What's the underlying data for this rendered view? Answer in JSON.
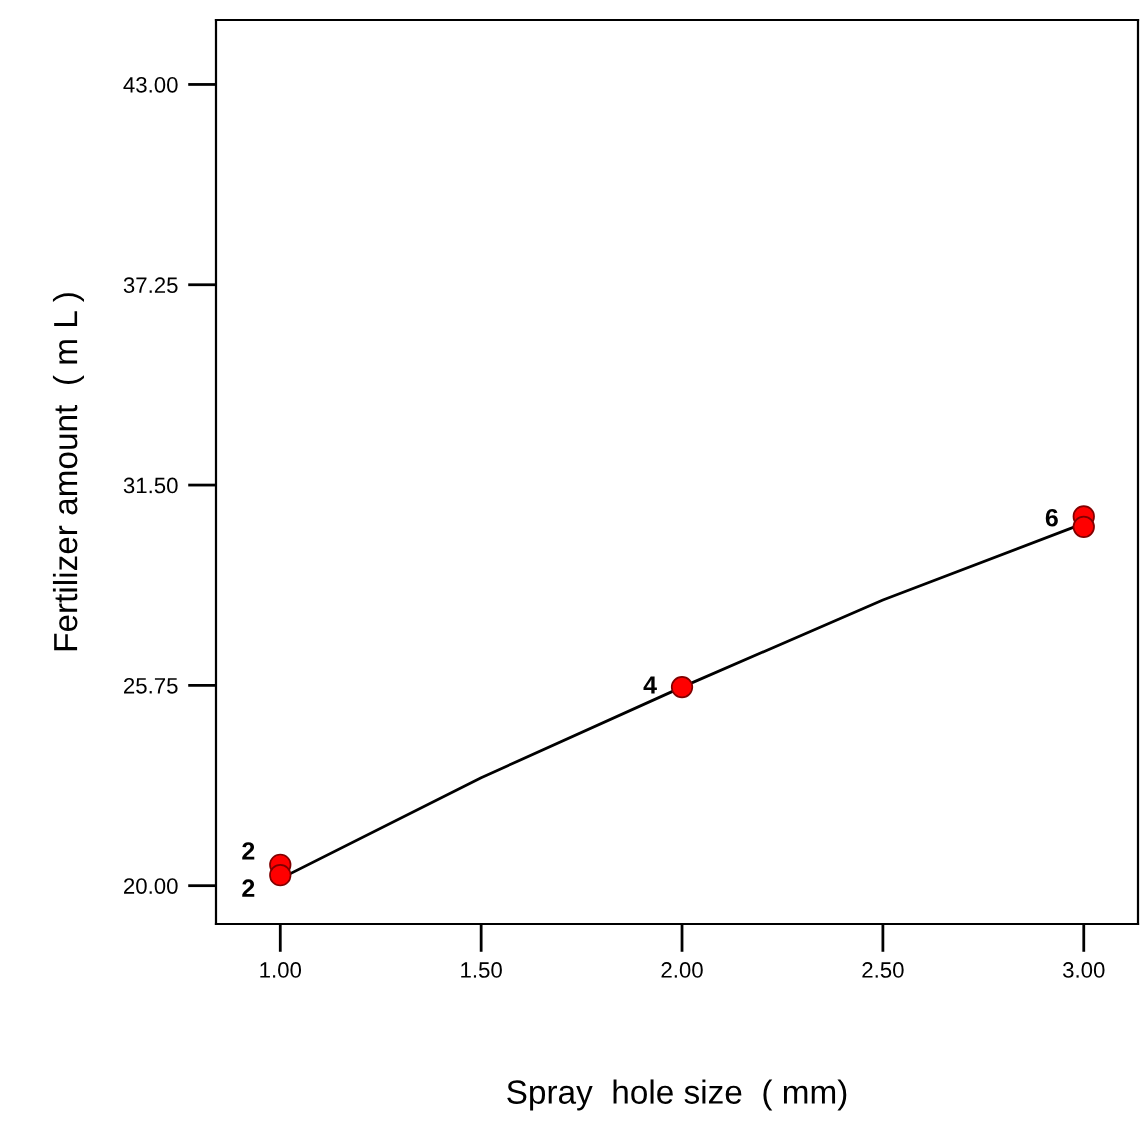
{
  "chart_data": {
    "type": "scatter",
    "xlabel": "Spray  hole size  ( mm)",
    "ylabel": "Fertilizer amount  ( m L )",
    "xlim": [
      0.84,
      3.135
    ],
    "ylim": [
      18.9,
      44.85
    ],
    "xticks": [
      {
        "value": 1,
        "label": "1.00"
      },
      {
        "value": 1.5,
        "label": "1.50"
      },
      {
        "value": 2,
        "label": "2.00"
      },
      {
        "value": 2.5,
        "label": "2.50"
      },
      {
        "value": 3,
        "label": "3.00"
      }
    ],
    "yticks": [
      {
        "value": 20,
        "label": "20.00"
      },
      {
        "value": 25.75,
        "label": "25.75"
      },
      {
        "value": 31.5,
        "label": "31.50"
      },
      {
        "value": 37.25,
        "label": "37.25"
      },
      {
        "value": 43,
        "label": "43.00"
      }
    ],
    "grid": false,
    "series": [
      {
        "marker": "circle",
        "color": "#ff0000",
        "x": [
          1,
          1,
          2,
          3,
          3
        ],
        "values": [
          20.6,
          20.3,
          25.7,
          30.6,
          30.3
        ]
      },
      {
        "type": "line",
        "color": "#000000",
        "x": [
          1,
          1.5,
          2,
          2.5,
          3
        ],
        "values": [
          20.2,
          23.1,
          25.7,
          28.2,
          30.4
        ]
      }
    ],
    "annotations": [
      {
        "text": "2",
        "x": 1,
        "y": 20.6
      },
      {
        "text": "2",
        "x": 1,
        "y": 20.2
      },
      {
        "text": "4",
        "x": 2,
        "y": 25.7
      },
      {
        "text": "6",
        "x": 3,
        "y": 30.5
      }
    ]
  }
}
